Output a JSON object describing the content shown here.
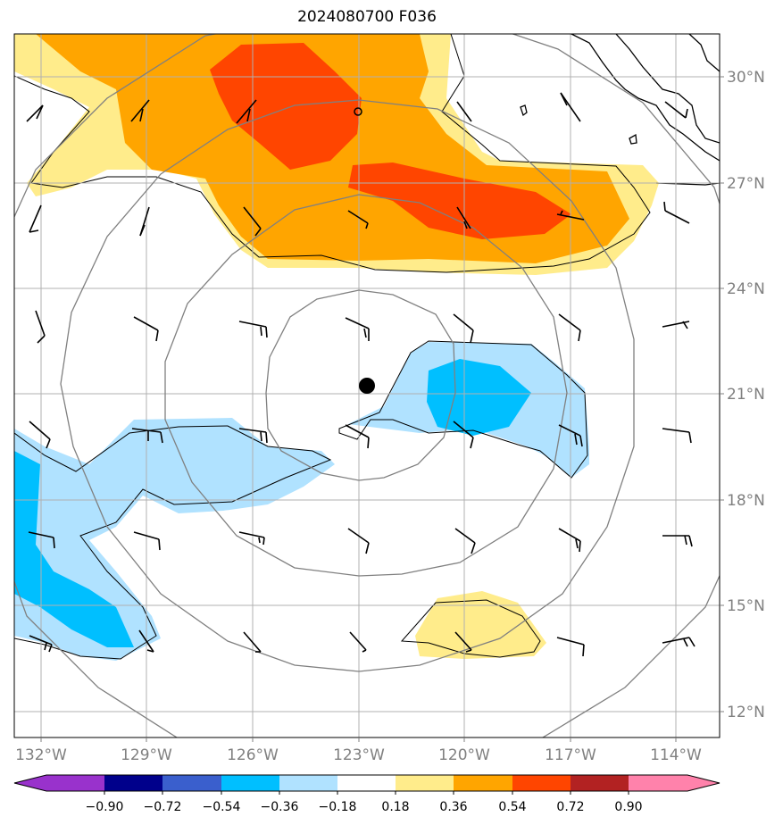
{
  "title": "2024080700 F036",
  "map": {
    "lat_labels": [
      "30°N",
      "27°N",
      "24°N",
      "21°N",
      "18°N",
      "15°N",
      "12°N"
    ],
    "lon_labels": [
      "132°W",
      "129°W",
      "126°W",
      "123°W",
      "120°W",
      "117°W",
      "114°W"
    ],
    "gridlines": true,
    "range_rings": 4,
    "center_marker": "storm-center-dot"
  },
  "colorbar": {
    "ticks": [
      "−0.90",
      "−0.72",
      "−0.54",
      "−0.36",
      "−0.18",
      "0.18",
      "0.36",
      "0.54",
      "0.72",
      "0.90"
    ],
    "colors": [
      "#9932cc",
      "#00008b",
      "#3a5fcd",
      "#00bfff",
      "#b0e2ff",
      "#ffffff",
      "#ffec8b",
      "#ffa500",
      "#ff4500",
      "#b22222",
      "#ff82ab"
    ],
    "extend": "both"
  }
}
